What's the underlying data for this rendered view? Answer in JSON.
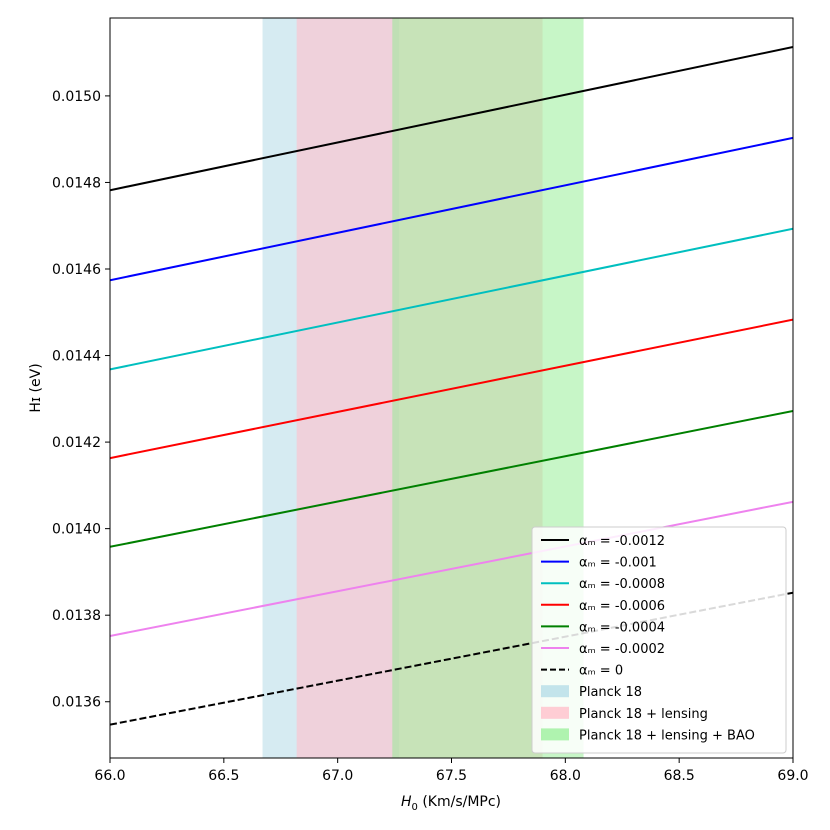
{
  "chart_data": {
    "type": "line",
    "xlabel_prefix": "H",
    "xlabel_sub": "0",
    "xlabel_suffix": " (Km/s/MPc)",
    "ylabel": "Hɪ (eV)",
    "xlim": [
      66.0,
      69.0
    ],
    "ylim": [
      0.01347,
      0.01518
    ],
    "x_ticks": [
      66.0,
      66.5,
      67.0,
      67.5,
      68.0,
      68.5,
      69.0
    ],
    "x_tick_labels": [
      "66.0",
      "66.5",
      "67.0",
      "67.5",
      "68.0",
      "68.5",
      "69.0"
    ],
    "y_ticks": [
      0.0136,
      0.0138,
      0.014,
      0.0142,
      0.0144,
      0.0146,
      0.0148,
      0.015
    ],
    "y_tick_labels": [
      "0.0136",
      "0.0138",
      "0.0140",
      "0.0142",
      "0.0144",
      "0.0146",
      "0.0148",
      "0.0150"
    ],
    "bands": [
      {
        "name": "Planck 18",
        "x": [
          66.67,
          67.27
        ],
        "color": "#add8e6",
        "opacity": 0.5
      },
      {
        "name": "Planck 18 + lensing",
        "x": [
          66.82,
          67.9
        ],
        "color": "#ffc0cb",
        "opacity": 0.6
      },
      {
        "name": "Planck 18 + lensing + BAO",
        "x": [
          67.24,
          68.08
        ],
        "color": "#90ee90",
        "opacity": 0.5
      }
    ],
    "series": [
      {
        "name": "αₘ = -0.0012",
        "color": "#000000",
        "dash": false,
        "x": [
          66.0,
          69.0
        ],
        "y": [
          0.014782,
          0.015113
        ]
      },
      {
        "name": "αₘ = -0.001",
        "color": "#0000ff",
        "dash": false,
        "x": [
          66.0,
          69.0
        ],
        "y": [
          0.014574,
          0.014903
        ]
      },
      {
        "name": "αₘ = -0.0008",
        "color": "#00bfbf",
        "dash": false,
        "x": [
          66.0,
          69.0
        ],
        "y": [
          0.014368,
          0.014693
        ]
      },
      {
        "name": "αₘ = -0.0006",
        "color": "#ff0000",
        "dash": false,
        "x": [
          66.0,
          69.0
        ],
        "y": [
          0.014163,
          0.014483
        ]
      },
      {
        "name": "αₘ = -0.0004",
        "color": "#008000",
        "dash": false,
        "x": [
          66.0,
          69.0
        ],
        "y": [
          0.013958,
          0.014272
        ]
      },
      {
        "name": "αₘ = -0.0002",
        "color": "#ee82ee",
        "dash": false,
        "x": [
          66.0,
          69.0
        ],
        "y": [
          0.013752,
          0.014062
        ]
      },
      {
        "name": "αₘ = 0",
        "color": "#000000",
        "dash": true,
        "x": [
          66.0,
          69.0
        ],
        "y": [
          0.013547,
          0.013852
        ]
      }
    ],
    "legend_position": "lower-right",
    "grid": false
  }
}
